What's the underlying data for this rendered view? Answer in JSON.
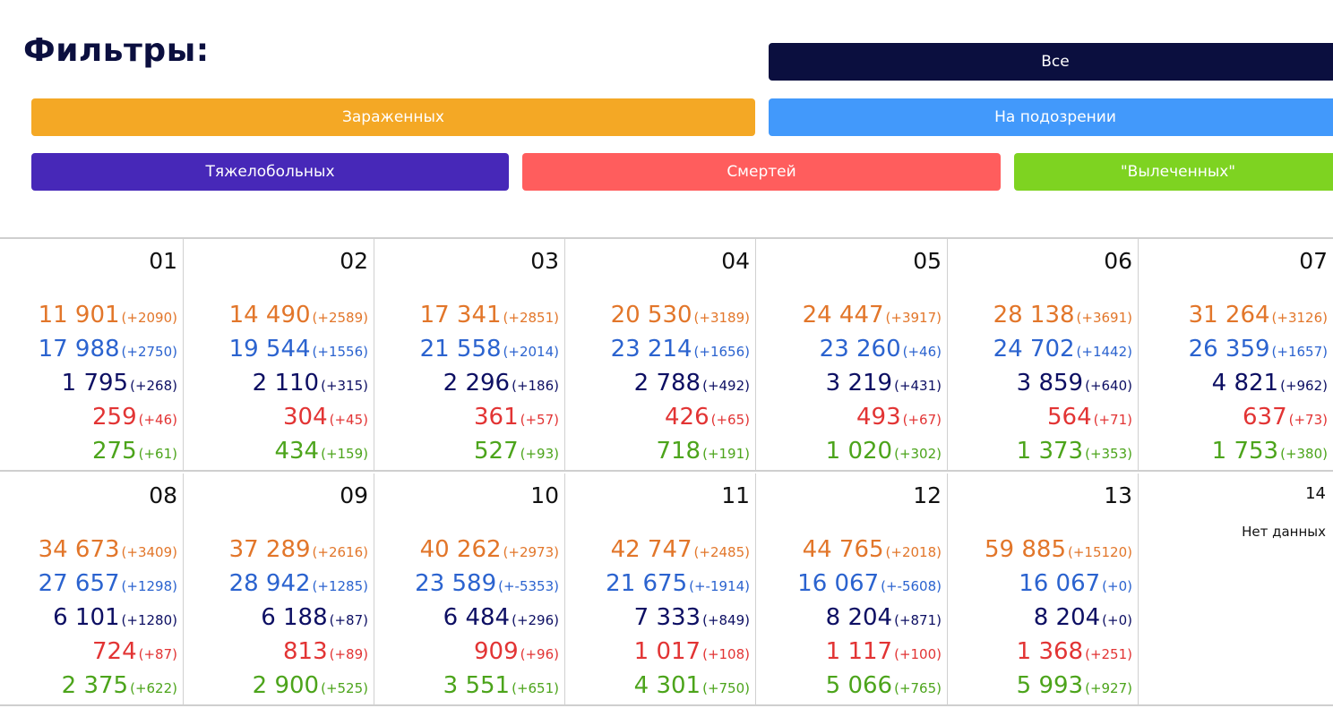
{
  "filters": {
    "title": "Фильтры:",
    "all": "Все",
    "infected": "Зараженных",
    "suspected": "На подозрении",
    "critical": "Тяжелобольных",
    "deaths": "Смертей",
    "cured": "\"Вылеченных\""
  },
  "colors": {
    "infected": "#e2762a",
    "suspected": "#2b63cf",
    "critical": "#0d0f63",
    "deaths": "#e23434",
    "cured": "#4ca41b"
  },
  "days": [
    {
      "day": "01",
      "rows": [
        [
          "11 901",
          "(+2090)"
        ],
        [
          "17 988",
          "(+2750)"
        ],
        [
          "1 795",
          "(+268)"
        ],
        [
          "259",
          "(+46)"
        ],
        [
          "275",
          "(+61)"
        ]
      ]
    },
    {
      "day": "02",
      "rows": [
        [
          "14 490",
          "(+2589)"
        ],
        [
          "19 544",
          "(+1556)"
        ],
        [
          "2 110",
          "(+315)"
        ],
        [
          "304",
          "(+45)"
        ],
        [
          "434",
          "(+159)"
        ]
      ]
    },
    {
      "day": "03",
      "rows": [
        [
          "17 341",
          "(+2851)"
        ],
        [
          "21 558",
          "(+2014)"
        ],
        [
          "2 296",
          "(+186)"
        ],
        [
          "361",
          "(+57)"
        ],
        [
          "527",
          "(+93)"
        ]
      ]
    },
    {
      "day": "04",
      "rows": [
        [
          "20 530",
          "(+3189)"
        ],
        [
          "23 214",
          "(+1656)"
        ],
        [
          "2 788",
          "(+492)"
        ],
        [
          "426",
          "(+65)"
        ],
        [
          "718",
          "(+191)"
        ]
      ]
    },
    {
      "day": "05",
      "rows": [
        [
          "24 447",
          "(+3917)"
        ],
        [
          "23 260",
          "(+46)"
        ],
        [
          "3 219",
          "(+431)"
        ],
        [
          "493",
          "(+67)"
        ],
        [
          "1 020",
          "(+302)"
        ]
      ]
    },
    {
      "day": "06",
      "rows": [
        [
          "28 138",
          "(+3691)"
        ],
        [
          "24 702",
          "(+1442)"
        ],
        [
          "3 859",
          "(+640)"
        ],
        [
          "564",
          "(+71)"
        ],
        [
          "1 373",
          "(+353)"
        ]
      ]
    },
    {
      "day": "07",
      "rows": [
        [
          "31 264",
          "(+3126)"
        ],
        [
          "26 359",
          "(+1657)"
        ],
        [
          "4 821",
          "(+962)"
        ],
        [
          "637",
          "(+73)"
        ],
        [
          "1 753",
          "(+380)"
        ]
      ]
    },
    {
      "day": "08",
      "rows": [
        [
          "34 673",
          "(+3409)"
        ],
        [
          "27 657",
          "(+1298)"
        ],
        [
          "6 101",
          "(+1280)"
        ],
        [
          "724",
          "(+87)"
        ],
        [
          "2 375",
          "(+622)"
        ]
      ]
    },
    {
      "day": "09",
      "rows": [
        [
          "37 289",
          "(+2616)"
        ],
        [
          "28 942",
          "(+1285)"
        ],
        [
          "6 188",
          "(+87)"
        ],
        [
          "813",
          "(+89)"
        ],
        [
          "2 900",
          "(+525)"
        ]
      ]
    },
    {
      "day": "10",
      "rows": [
        [
          "40 262",
          "(+2973)"
        ],
        [
          "23 589",
          "(+-5353)"
        ],
        [
          "6 484",
          "(+296)"
        ],
        [
          "909",
          "(+96)"
        ],
        [
          "3 551",
          "(+651)"
        ]
      ]
    },
    {
      "day": "11",
      "rows": [
        [
          "42 747",
          "(+2485)"
        ],
        [
          "21 675",
          "(+-1914)"
        ],
        [
          "7 333",
          "(+849)"
        ],
        [
          "1 017",
          "(+108)"
        ],
        [
          "4 301",
          "(+750)"
        ]
      ]
    },
    {
      "day": "12",
      "rows": [
        [
          "44 765",
          "(+2018)"
        ],
        [
          "16 067",
          "(+-5608)"
        ],
        [
          "8 204",
          "(+871)"
        ],
        [
          "1 117",
          "(+100)"
        ],
        [
          "5 066",
          "(+765)"
        ]
      ]
    },
    {
      "day": "13",
      "rows": [
        [
          "59 885",
          "(+15120)"
        ],
        [
          "16 067",
          "(+0)"
        ],
        [
          "8 204",
          "(+0)"
        ],
        [
          "1 368",
          "(+251)"
        ],
        [
          "5 993",
          "(+927)"
        ]
      ]
    },
    {
      "day": "14",
      "no_data": "Нет данных"
    }
  ]
}
